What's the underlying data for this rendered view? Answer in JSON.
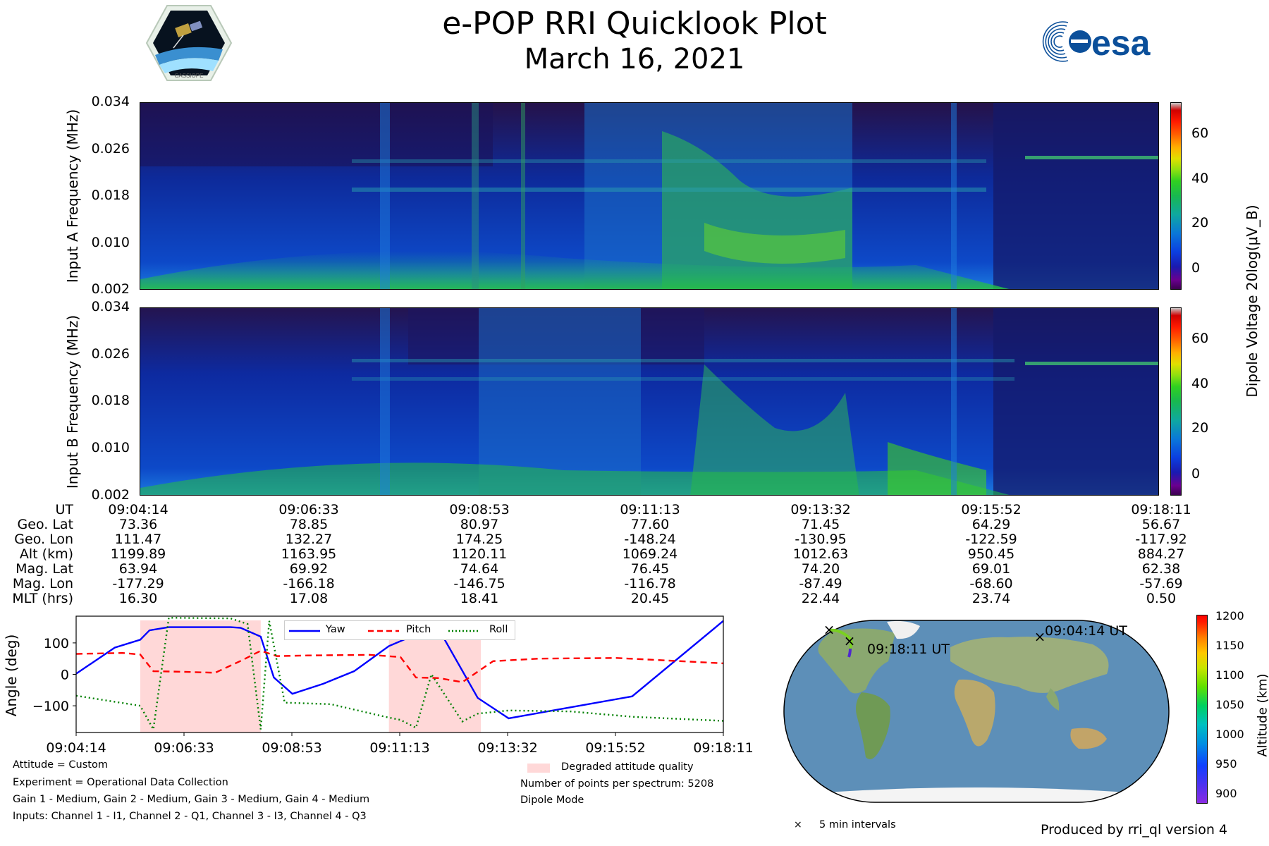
{
  "header": {
    "title": "e-POP RRI Quicklook Plot",
    "date": "March 16, 2021",
    "left_logo_text": "CASSIOPE",
    "right_logo_text": "esa"
  },
  "colors": {
    "yaw": "#0000ff",
    "pitch": "#ff0000",
    "roll": "#008000",
    "degraded": "#ffd8d8"
  },
  "chart_data": [
    {
      "type": "heatmap",
      "id": "input_a",
      "ylabel": "Input A Frequency (MHz)",
      "yticks": [
        "0.034",
        "0.026",
        "0.018",
        "0.010",
        "0.002"
      ],
      "ylim": [
        0.002,
        0.034
      ],
      "colorbar": {
        "label": "Dipole Voltage 20log(μV_B)",
        "ticks": [
          "60",
          "40",
          "20",
          "0"
        ],
        "range": [
          -10,
          75
        ]
      }
    },
    {
      "type": "heatmap",
      "id": "input_b",
      "ylabel": "Input B Frequency (MHz)",
      "yticks": [
        "0.034",
        "0.026",
        "0.018",
        "0.010",
        "0.002"
      ],
      "ylim": [
        0.002,
        0.034
      ],
      "colorbar": {
        "label": "Dipole Voltage 20log(μV_B)",
        "ticks": [
          "60",
          "40",
          "20",
          "0"
        ],
        "range": [
          -10,
          75
        ]
      }
    },
    {
      "type": "line",
      "id": "attitude",
      "ylabel": "Angle (deg)",
      "yticks": [
        "100",
        "0",
        "−100"
      ],
      "ylim": [
        -185,
        185
      ],
      "xticks": [
        "09:04:14",
        "09:06:33",
        "09:08:53",
        "09:11:13",
        "09:13:32",
        "09:15:52",
        "09:18:11"
      ],
      "xlim": [
        0,
        838
      ],
      "legend": [
        "Yaw",
        "Pitch",
        "Roll"
      ],
      "degraded_spans": [
        [
          83,
          239
        ],
        [
          405,
          524
        ]
      ],
      "series": [
        {
          "name": "Yaw",
          "x": [
            0,
            50,
            83,
            95,
            120,
            200,
            213,
            239,
            256,
            280,
            320,
            330,
            360,
            405,
            453,
            468,
            520,
            560,
            640,
            720,
            838
          ],
          "values": [
            2,
            85,
            110,
            140,
            150,
            150,
            148,
            120,
            -10,
            -62,
            -30,
            -20,
            10,
            90,
            140,
            150,
            -75,
            -140,
            -105,
            -70,
            170
          ]
        },
        {
          "name": "Pitch",
          "x": [
            0,
            60,
            83,
            100,
            140,
            180,
            215,
            239,
            260,
            300,
            380,
            420,
            440,
            470,
            500,
            540,
            600,
            700,
            838
          ],
          "values": [
            65,
            68,
            63,
            10,
            8,
            5,
            45,
            75,
            58,
            60,
            62,
            55,
            -10,
            -12,
            -25,
            42,
            50,
            52,
            35
          ]
        },
        {
          "name": "Roll",
          "x": [
            0,
            83,
            100,
            120,
            200,
            222,
            239,
            250,
            270,
            330,
            400,
            420,
            440,
            460,
            500,
            520,
            560,
            640,
            720,
            838
          ],
          "values": [
            -68,
            -100,
            -175,
            180,
            178,
            160,
            -175,
            170,
            -90,
            -95,
            -135,
            -145,
            -170,
            0,
            -150,
            -125,
            -115,
            -118,
            -135,
            -148
          ]
        }
      ]
    }
  ],
  "ephemeris": {
    "labels": [
      "UT",
      "Geo. Lat",
      "Geo. Lon",
      "Alt (km)",
      "Mag. Lat",
      "Mag. Lon",
      "MLT (hrs)"
    ],
    "columns": [
      [
        "09:04:14",
        "73.36",
        "111.47",
        "1199.89",
        "63.94",
        "-177.29",
        "16.30"
      ],
      [
        "09:06:33",
        "78.85",
        "132.27",
        "1163.95",
        "69.92",
        "-166.18",
        "17.08"
      ],
      [
        "09:08:53",
        "80.97",
        "174.25",
        "1120.11",
        "74.64",
        "-146.75",
        "18.41"
      ],
      [
        "09:11:13",
        "77.60",
        "-148.24",
        "1069.24",
        "76.45",
        "-116.78",
        "20.45"
      ],
      [
        "09:13:32",
        "71.45",
        "-130.95",
        "1012.63",
        "74.20",
        "-87.49",
        "22.44"
      ],
      [
        "09:15:52",
        "64.29",
        "-122.59",
        "950.45",
        "69.01",
        "-68.60",
        "23.74"
      ],
      [
        "09:18:11",
        "56.67",
        "-117.92",
        "884.27",
        "62.38",
        "-57.69",
        "0.50"
      ]
    ]
  },
  "map": {
    "start_label": "09:04:14 UT",
    "end_label": "09:18:11 UT",
    "colorbar_label": "Altitude (km)",
    "colorbar_ticks": [
      "1200",
      "1150",
      "1100",
      "1050",
      "1000",
      "950",
      "900"
    ],
    "marker_legend": "5 min intervals"
  },
  "footer": {
    "attitude": "Attitude = Custom",
    "experiment": "Experiment = Operational Data Collection",
    "gains": "Gain 1 - Medium, Gain 2 - Medium, Gain 3 - Medium, Gain 4 - Medium",
    "inputs": "Inputs: Channel 1 - I1, Channel 2 - Q1, Channel 3 - I3, Channel 4 - Q3",
    "degraded_label": "Degraded attitude quality",
    "points": "Number of points per spectrum: 5208",
    "mode": "Dipole Mode",
    "produced_by": "Produced by rri_ql version 4"
  }
}
